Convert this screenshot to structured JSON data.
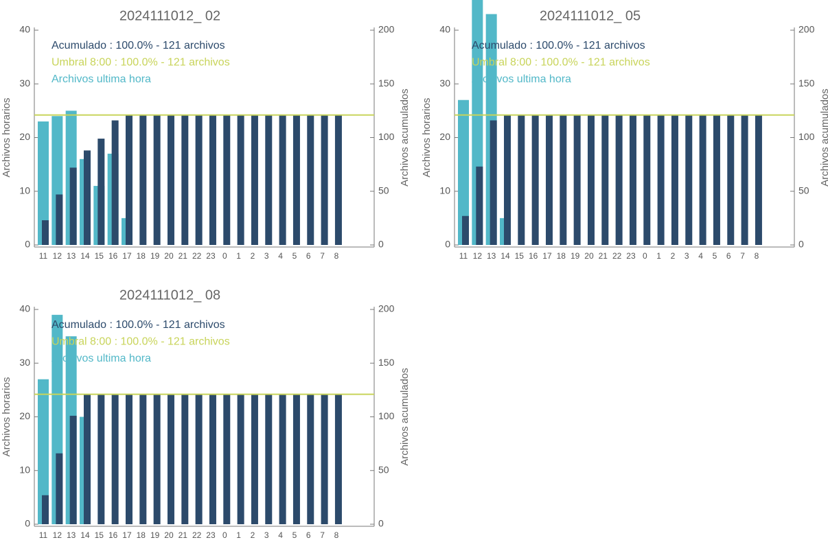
{
  "chart_data": [
    {
      "type": "bar",
      "title": "2024111012_ 02",
      "ylabel": "Archivos horarios",
      "y2label": "Archivos acumulados",
      "categories": [
        "11",
        "12",
        "13",
        "14",
        "15",
        "16",
        "17",
        "18",
        "19",
        "20",
        "21",
        "22",
        "23",
        "0",
        "1",
        "2",
        "3",
        "4",
        "5",
        "6",
        "7",
        "8"
      ],
      "series": [
        {
          "name": "Archivos ultima hora",
          "color": "#52b8c8",
          "values": [
            23,
            24,
            25,
            16,
            11,
            17,
            5,
            0,
            0,
            0,
            0,
            0,
            0,
            0,
            0,
            0,
            0,
            0,
            0,
            0,
            0,
            0
          ]
        },
        {
          "name": "Acumulado : 100.0% - 121 archivos",
          "color": "#2c4a6b",
          "axis": "y2",
          "values": [
            23,
            47,
            72,
            88,
            99,
            116,
            121,
            121,
            121,
            121,
            121,
            121,
            121,
            121,
            121,
            121,
            121,
            121,
            121,
            121,
            121,
            121
          ]
        }
      ],
      "reference_line": {
        "name": "Umbral 8:00 : 100.0% - 121 archivos",
        "color": "#c8d45a",
        "axis": "y2",
        "value": 121
      },
      "ylim": [
        0,
        40
      ],
      "yticks": [
        0,
        10,
        20,
        30,
        40
      ],
      "y2lim": [
        0,
        200
      ],
      "y2ticks": [
        0,
        50,
        100,
        150,
        200
      ]
    },
    {
      "type": "bar",
      "title": "2024111012_ 05",
      "ylabel": "Archivos horarios",
      "y2label": "Archivos acumulados",
      "categories": [
        "11",
        "12",
        "13",
        "14",
        "15",
        "16",
        "17",
        "18",
        "19",
        "20",
        "21",
        "22",
        "23",
        "0",
        "1",
        "2",
        "3",
        "4",
        "5",
        "6",
        "7",
        "8"
      ],
      "series": [
        {
          "name": "Archivos ultima hora",
          "color": "#52b8c8",
          "values": [
            27,
            46,
            43,
            5,
            0,
            0,
            0,
            0,
            0,
            0,
            0,
            0,
            0,
            0,
            0,
            0,
            0,
            0,
            0,
            0,
            0,
            0
          ]
        },
        {
          "name": "Acumulado : 100.0% - 121 archivos",
          "color": "#2c4a6b",
          "axis": "y2",
          "values": [
            27,
            73,
            116,
            121,
            121,
            121,
            121,
            121,
            121,
            121,
            121,
            121,
            121,
            121,
            121,
            121,
            121,
            121,
            121,
            121,
            121,
            121
          ]
        }
      ],
      "reference_line": {
        "name": "Umbral 8:00 : 100.0% - 121 archivos",
        "color": "#c8d45a",
        "axis": "y2",
        "value": 121
      },
      "ylim": [
        0,
        40
      ],
      "yticks": [
        0,
        10,
        20,
        30,
        40
      ],
      "y2lim": [
        0,
        200
      ],
      "y2ticks": [
        0,
        50,
        100,
        150,
        200
      ]
    },
    {
      "type": "bar",
      "title": "2024111012_ 08",
      "ylabel": "Archivos horarios",
      "y2label": "Archivos acumulados",
      "categories": [
        "11",
        "12",
        "13",
        "14",
        "15",
        "16",
        "17",
        "18",
        "19",
        "20",
        "21",
        "22",
        "23",
        "0",
        "1",
        "2",
        "3",
        "4",
        "5",
        "6",
        "7",
        "8"
      ],
      "series": [
        {
          "name": "Archivos ultima hora",
          "color": "#52b8c8",
          "values": [
            27,
            39,
            35,
            20,
            0,
            0,
            0,
            0,
            0,
            0,
            0,
            0,
            0,
            0,
            0,
            0,
            0,
            0,
            0,
            0,
            0,
            0
          ]
        },
        {
          "name": "Acumulado : 100.0% - 121 archivos",
          "color": "#2c4a6b",
          "axis": "y2",
          "values": [
            27,
            66,
            101,
            121,
            121,
            121,
            121,
            121,
            121,
            121,
            121,
            121,
            121,
            121,
            121,
            121,
            121,
            121,
            121,
            121,
            121,
            121
          ]
        }
      ],
      "reference_line": {
        "name": "Umbral 8:00 : 100.0% - 121 archivos",
        "color": "#c8d45a",
        "axis": "y2",
        "value": 121
      },
      "ylim": [
        0,
        40
      ],
      "yticks": [
        0,
        10,
        20,
        30,
        40
      ],
      "y2lim": [
        0,
        200
      ],
      "y2ticks": [
        0,
        50,
        100,
        150,
        200
      ]
    }
  ]
}
